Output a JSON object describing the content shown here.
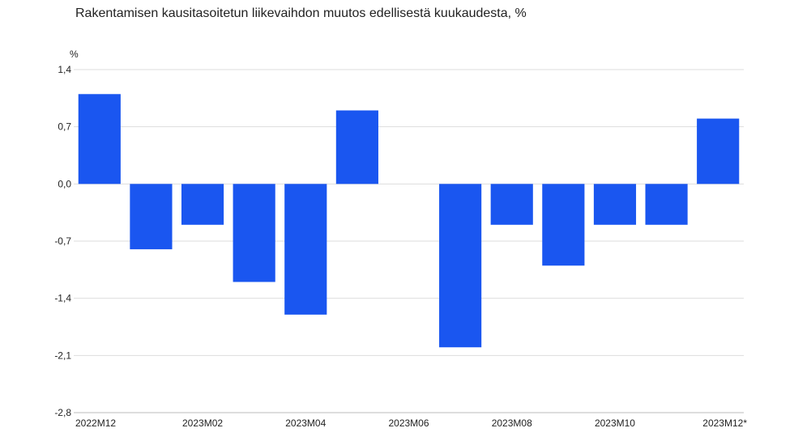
{
  "chart_data": {
    "type": "bar",
    "title": "Rakentamisen kausitasoitetun liikevaihdon muutos edellisestä kuukaudesta, %",
    "ylabel": "%",
    "xlabel": "",
    "ylim": [
      -2.8,
      1.4
    ],
    "yticks": [
      "1,4",
      "0,7",
      "0,0",
      "-0,7",
      "-1,4",
      "-2,1",
      "-2,8"
    ],
    "ytick_values": [
      1.4,
      0.7,
      0.0,
      -0.7,
      -1.4,
      -2.1,
      -2.8
    ],
    "categories": [
      "2022M12",
      "2023M01",
      "2023M02",
      "2023M03",
      "2023M04",
      "2023M05",
      "2023M06",
      "2023M07",
      "2023M08",
      "2023M09",
      "2023M10",
      "2023M11",
      "2023M12*"
    ],
    "xtick_labels": [
      "2022M12",
      "2023M02",
      "2023M04",
      "2023M06",
      "2023M08",
      "2023M10",
      "2023M12*"
    ],
    "values": [
      1.1,
      -0.8,
      -0.5,
      -1.2,
      -1.6,
      0.9,
      0.0,
      -2.0,
      -0.5,
      -1.0,
      -0.5,
      -0.5,
      0.8
    ],
    "bar_color": "#1a56f0",
    "grid": true
  }
}
